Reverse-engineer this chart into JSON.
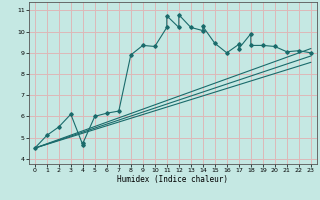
{
  "xlabel": "Humidex (Indice chaleur)",
  "bg_color": "#c5e8e3",
  "grid_color": "#ddb8b8",
  "line_color": "#1a6b6b",
  "xlim": [
    -0.5,
    23.5
  ],
  "ylim": [
    3.75,
    11.4
  ],
  "xticks": [
    0,
    1,
    2,
    3,
    4,
    5,
    6,
    7,
    8,
    9,
    10,
    11,
    12,
    13,
    14,
    15,
    16,
    17,
    18,
    19,
    20,
    21,
    22,
    23
  ],
  "yticks": [
    4,
    5,
    6,
    7,
    8,
    9,
    10,
    11
  ],
  "jagged_x": [
    0,
    1,
    2,
    3,
    4,
    4,
    5,
    6,
    7,
    8,
    9,
    10,
    11,
    11,
    12,
    12,
    13,
    14,
    14,
    15,
    16,
    17,
    17,
    18,
    18,
    19,
    20,
    21,
    22,
    23
  ],
  "jagged_y": [
    4.5,
    5.1,
    5.5,
    6.1,
    4.65,
    4.72,
    6.0,
    6.15,
    6.25,
    8.9,
    9.35,
    9.3,
    10.2,
    10.75,
    10.2,
    10.8,
    10.2,
    10.05,
    10.25,
    9.45,
    9.0,
    9.4,
    9.2,
    9.9,
    9.35,
    9.35,
    9.3,
    9.05,
    9.1,
    9.0
  ],
  "line1_x": [
    0,
    23
  ],
  "line1_y": [
    4.5,
    9.2
  ],
  "line2_x": [
    0,
    23
  ],
  "line2_y": [
    4.5,
    8.55
  ],
  "line3_x": [
    0,
    23
  ],
  "line3_y": [
    4.5,
    8.85
  ]
}
